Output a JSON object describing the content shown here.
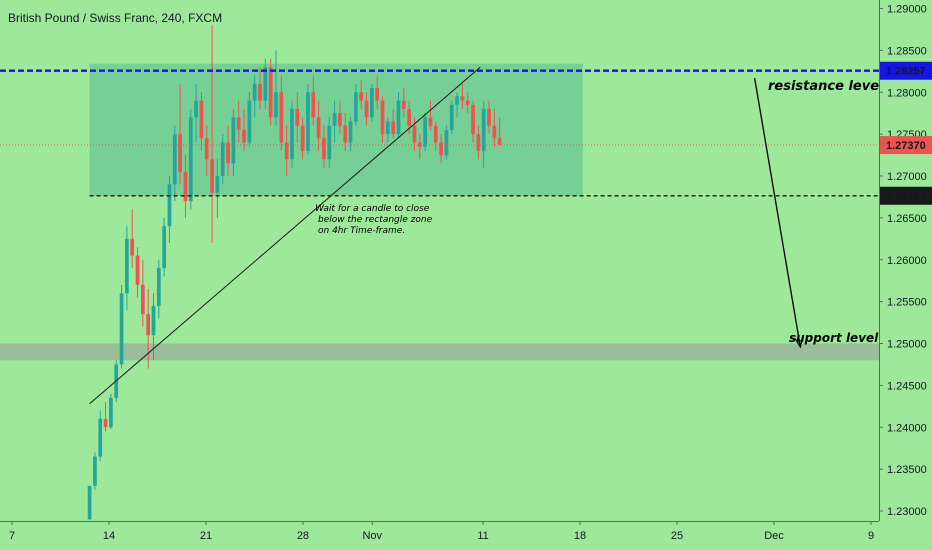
{
  "header": {
    "title": "British Pound / Swiss Franc, 240, FXCM"
  },
  "chart_data": {
    "type": "candlestick",
    "ylim": [
      1.2295,
      1.2912
    ],
    "y_ticks": [
      "1.29000",
      "1.28500",
      "1.28000",
      "1.27500",
      "1.27000",
      "1.26500",
      "1.26000",
      "1.25500",
      "1.25000",
      "1.24500",
      "1.24000",
      "1.23500",
      "1.23000"
    ],
    "x_labels": [
      {
        "day": 7,
        "label": "7"
      },
      {
        "day": 14,
        "label": "14"
      },
      {
        "day": 21,
        "label": "21"
      },
      {
        "day": 28,
        "label": "28"
      },
      {
        "day": 33,
        "label": "Nov"
      },
      {
        "day": 41,
        "label": "11"
      },
      {
        "day": 48,
        "label": "18"
      },
      {
        "day": 55,
        "label": "25"
      },
      {
        "day": 62,
        "label": "Dec"
      },
      {
        "day": 69,
        "label": "9"
      }
    ],
    "candle_days": [
      12.6,
      42.2
    ],
    "candles": [
      [
        1.229,
        1.233,
        1.229,
        1.233
      ],
      [
        1.233,
        1.237,
        1.2325,
        1.2365
      ],
      [
        1.2365,
        1.242,
        1.236,
        1.241
      ],
      [
        1.241,
        1.243,
        1.2395,
        1.24
      ],
      [
        1.24,
        1.244,
        1.2398,
        1.2435
      ],
      [
        1.2435,
        1.248,
        1.243,
        1.2475
      ],
      [
        1.2475,
        1.257,
        1.247,
        1.256
      ],
      [
        1.256,
        1.264,
        1.254,
        1.2625
      ],
      [
        1.2625,
        1.266,
        1.259,
        1.2605
      ],
      [
        1.2605,
        1.2615,
        1.2555,
        1.257
      ],
      [
        1.257,
        1.26,
        1.252,
        1.2535
      ],
      [
        1.2535,
        1.2565,
        1.247,
        1.251
      ],
      [
        1.251,
        1.256,
        1.248,
        1.2545
      ],
      [
        1.2545,
        1.26,
        1.253,
        1.259
      ],
      [
        1.259,
        1.265,
        1.258,
        1.264
      ],
      [
        1.264,
        1.27,
        1.262,
        1.269
      ],
      [
        1.269,
        1.276,
        1.267,
        1.275
      ],
      [
        1.275,
        1.281,
        1.269,
        1.2705
      ],
      [
        1.2705,
        1.2725,
        1.265,
        1.267
      ],
      [
        1.267,
        1.278,
        1.266,
        1.277
      ],
      [
        1.277,
        1.281,
        1.274,
        1.279
      ],
      [
        1.279,
        1.28,
        1.273,
        1.2745
      ],
      [
        1.2745,
        1.276,
        1.27,
        1.272
      ],
      [
        1.272,
        1.288,
        1.262,
        1.268
      ],
      [
        1.268,
        1.272,
        1.265,
        1.27
      ],
      [
        1.27,
        1.275,
        1.269,
        1.274
      ],
      [
        1.274,
        1.276,
        1.27,
        1.2715
      ],
      [
        1.2715,
        1.278,
        1.27,
        1.277
      ],
      [
        1.277,
        1.279,
        1.274,
        1.2755
      ],
      [
        1.2755,
        1.278,
        1.273,
        1.274
      ],
      [
        1.274,
        1.28,
        1.2735,
        1.279
      ],
      [
        1.279,
        1.282,
        1.277,
        1.281
      ],
      [
        1.281,
        1.283,
        1.278,
        1.279
      ],
      [
        1.279,
        1.284,
        1.278,
        1.283
      ],
      [
        1.283,
        1.284,
        1.276,
        1.277
      ],
      [
        1.277,
        1.285,
        1.276,
        1.28
      ],
      [
        1.28,
        1.282,
        1.273,
        1.274
      ],
      [
        1.274,
        1.276,
        1.27,
        1.272
      ],
      [
        1.272,
        1.279,
        1.271,
        1.278
      ],
      [
        1.278,
        1.28,
        1.274,
        1.276
      ],
      [
        1.276,
        1.277,
        1.272,
        1.273
      ],
      [
        1.273,
        1.281,
        1.2725,
        1.28
      ],
      [
        1.28,
        1.282,
        1.276,
        1.277
      ],
      [
        1.277,
        1.279,
        1.273,
        1.2745
      ],
      [
        1.2745,
        1.276,
        1.271,
        1.272
      ],
      [
        1.272,
        1.277,
        1.271,
        1.276
      ],
      [
        1.276,
        1.279,
        1.274,
        1.2775
      ],
      [
        1.2775,
        1.279,
        1.275,
        1.276
      ],
      [
        1.276,
        1.2775,
        1.273,
        1.274
      ],
      [
        1.274,
        1.277,
        1.273,
        1.2765
      ],
      [
        1.2765,
        1.281,
        1.276,
        1.28
      ],
      [
        1.28,
        1.2815,
        1.278,
        1.279
      ],
      [
        1.279,
        1.28,
        1.276,
        1.277
      ],
      [
        1.277,
        1.281,
        1.2765,
        1.2805
      ],
      [
        1.2805,
        1.282,
        1.278,
        1.279
      ],
      [
        1.279,
        1.2795,
        1.274,
        1.275
      ],
      [
        1.275,
        1.277,
        1.274,
        1.2765
      ],
      [
        1.2765,
        1.278,
        1.2745,
        1.275
      ],
      [
        1.275,
        1.28,
        1.2745,
        1.279
      ],
      [
        1.279,
        1.2805,
        1.277,
        1.278
      ],
      [
        1.278,
        1.279,
        1.275,
        1.276
      ],
      [
        1.276,
        1.277,
        1.273,
        1.274
      ],
      [
        1.274,
        1.275,
        1.272,
        1.2735
      ],
      [
        1.2735,
        1.2775,
        1.273,
        1.277
      ],
      [
        1.277,
        1.279,
        1.2755,
        1.276
      ],
      [
        1.276,
        1.2765,
        1.273,
        1.274
      ],
      [
        1.274,
        1.275,
        1.2715,
        1.2725
      ],
      [
        1.2725,
        1.276,
        1.272,
        1.2755
      ],
      [
        1.2755,
        1.279,
        1.275,
        1.2785
      ],
      [
        1.2785,
        1.28,
        1.277,
        1.2795
      ],
      [
        1.2795,
        1.281,
        1.278,
        1.279
      ],
      [
        1.279,
        1.28,
        1.2775,
        1.2785
      ],
      [
        1.2785,
        1.279,
        1.274,
        1.275
      ],
      [
        1.275,
        1.276,
        1.272,
        1.273
      ],
      [
        1.273,
        1.279,
        1.271,
        1.278
      ],
      [
        1.278,
        1.279,
        1.275,
        1.276
      ],
      [
        1.276,
        1.278,
        1.2735,
        1.2745
      ],
      [
        1.2745,
        1.277,
        1.2737,
        1.2737
      ]
    ],
    "levels": [
      {
        "name": "resistance",
        "value": 1.28257,
        "label": "1.28257",
        "color": "#1515e6",
        "style": "dashed"
      },
      {
        "name": "current",
        "value": 1.2737,
        "label": "1.27370",
        "color": "#ef5350",
        "style": "dotted"
      },
      {
        "name": "zone-bottom",
        "value": 1.26764,
        "label": "1.26764",
        "color": "#1a1a1a",
        "style": "dashed"
      }
    ],
    "rectangle": {
      "x0": 12.6,
      "x1": 48.2,
      "y0": 1.26764,
      "y1": 1.2834,
      "color": "#2ea18a"
    },
    "support_band": {
      "y0": 1.248,
      "y1": 1.25,
      "color": "#999999"
    },
    "trendline": {
      "x0": 12.6,
      "y0": 1.2428,
      "x1": 40.8,
      "y1": 1.283,
      "color": "#1a1a1a"
    },
    "arrow": {
      "x0": 60.6,
      "y0": 1.2817,
      "x1": 63.9,
      "y1": 1.2496,
      "color": "#000000"
    },
    "annotations": {
      "resistance_label": "resistance level",
      "support_label": "support level",
      "note_lines": [
        "Wait for a candle to close",
        "below the rectangle zone",
        "on 4hr Time-frame."
      ]
    },
    "colors": {
      "background": "#9de89a",
      "bull": "#26a69a",
      "bear": "#ef5350"
    }
  }
}
